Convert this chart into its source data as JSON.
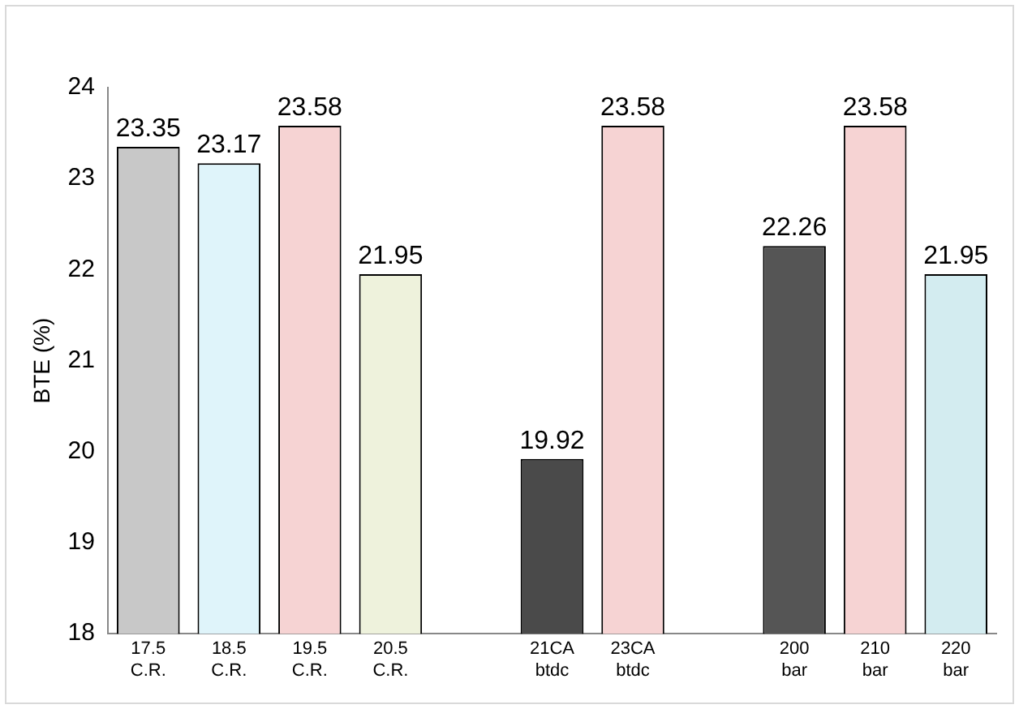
{
  "chart_data": {
    "type": "bar",
    "ylabel": "BTE (%)",
    "categories": [
      "17.5\nC.R.",
      "18.5\nC.R.",
      "19.5\nC.R.",
      "20.5\nC.R.",
      null,
      "21CA\nbtdc",
      "23CA\nbtdc",
      null,
      "200\nbar",
      "210\nbar",
      "220\nbar"
    ],
    "values": [
      23.35,
      23.17,
      23.58,
      21.95,
      null,
      19.92,
      23.58,
      null,
      22.26,
      23.58,
      21.95
    ],
    "colors": [
      "#c8c8c8",
      "#dff4fa",
      "#f6d3d3",
      "#eef2dc",
      null,
      "#4a4a4a",
      "#f6d3d3",
      null,
      "#555555",
      "#f6d3d3",
      "#d3ecf0"
    ],
    "ylim": [
      18,
      24
    ],
    "yticks": [
      18,
      19,
      20,
      21,
      22,
      23,
      24
    ],
    "grid": false,
    "legend": false,
    "data_labels": true
  }
}
